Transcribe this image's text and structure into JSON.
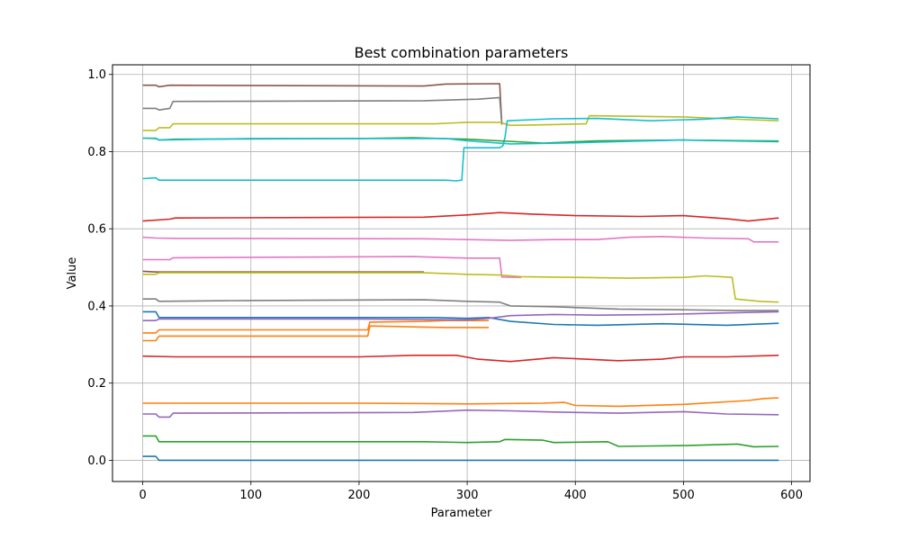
{
  "chart_data": {
    "type": "line",
    "title": "Best combination parameters",
    "xlabel": "Parameter",
    "ylabel": "Value",
    "xlim": [
      -28,
      617
    ],
    "ylim": [
      -0.055,
      1.025
    ],
    "xticks": [
      0,
      100,
      200,
      300,
      400,
      500,
      600
    ],
    "yticks": [
      0.0,
      0.2,
      0.4,
      0.6,
      0.8,
      1.0
    ],
    "xtick_labels": [
      "0",
      "100",
      "200",
      "300",
      "400",
      "500",
      "600"
    ],
    "ytick_labels": [
      "0.0",
      "0.2",
      "0.4",
      "0.6",
      "0.8",
      "1.0"
    ],
    "grid": true,
    "legend": "none",
    "series": [
      {
        "color": "#1f77b4",
        "points": [
          [
            0,
            0.01
          ],
          [
            12,
            0.01
          ],
          [
            15,
            0.0
          ],
          [
            588,
            0.0
          ]
        ]
      },
      {
        "color": "#ff7f0e",
        "points": [
          [
            0,
            0.148
          ],
          [
            200,
            0.148
          ],
          [
            300,
            0.146
          ],
          [
            370,
            0.148
          ],
          [
            390,
            0.15
          ],
          [
            400,
            0.142
          ],
          [
            440,
            0.14
          ],
          [
            500,
            0.145
          ],
          [
            560,
            0.155
          ],
          [
            575,
            0.16
          ],
          [
            588,
            0.162
          ]
        ]
      },
      {
        "color": "#2ca02c",
        "points": [
          [
            0,
            0.063
          ],
          [
            12,
            0.063
          ],
          [
            15,
            0.048
          ],
          [
            260,
            0.048
          ],
          [
            300,
            0.046
          ],
          [
            330,
            0.048
          ],
          [
            335,
            0.054
          ],
          [
            370,
            0.052
          ],
          [
            380,
            0.046
          ],
          [
            430,
            0.048
          ],
          [
            440,
            0.036
          ],
          [
            500,
            0.038
          ],
          [
            550,
            0.042
          ],
          [
            565,
            0.035
          ],
          [
            588,
            0.036
          ]
        ]
      },
      {
        "color": "#d62728",
        "points": [
          [
            0,
            0.27
          ],
          [
            30,
            0.268
          ],
          [
            200,
            0.268
          ],
          [
            250,
            0.272
          ],
          [
            290,
            0.272
          ],
          [
            310,
            0.262
          ],
          [
            340,
            0.256
          ],
          [
            380,
            0.266
          ],
          [
            440,
            0.258
          ],
          [
            480,
            0.262
          ],
          [
            500,
            0.268
          ],
          [
            540,
            0.268
          ],
          [
            588,
            0.272
          ]
        ]
      },
      {
        "color": "#9467bd",
        "points": [
          [
            0,
            0.12
          ],
          [
            12,
            0.12
          ],
          [
            15,
            0.112
          ],
          [
            25,
            0.112
          ],
          [
            28,
            0.122
          ],
          [
            250,
            0.124
          ],
          [
            300,
            0.13
          ],
          [
            340,
            0.128
          ],
          [
            380,
            0.125
          ],
          [
            440,
            0.122
          ],
          [
            500,
            0.126
          ],
          [
            540,
            0.12
          ],
          [
            588,
            0.118
          ]
        ]
      },
      {
        "color": "#8c564b",
        "points": [
          [
            0,
            0.972
          ],
          [
            12,
            0.972
          ],
          [
            15,
            0.968
          ],
          [
            25,
            0.972
          ],
          [
            260,
            0.97
          ],
          [
            280,
            0.975
          ],
          [
            330,
            0.976
          ],
          [
            332,
            0.87
          ]
        ]
      },
      {
        "color": "#e377c2",
        "points": [
          [
            0,
            0.52
          ],
          [
            25,
            0.52
          ],
          [
            28,
            0.525
          ],
          [
            250,
            0.528
          ],
          [
            300,
            0.524
          ],
          [
            330,
            0.524
          ],
          [
            332,
            0.475
          ],
          [
            350,
            0.474
          ]
        ]
      },
      {
        "color": "#7f7f7f",
        "points": [
          [
            0,
            0.912
          ],
          [
            12,
            0.912
          ],
          [
            15,
            0.908
          ],
          [
            25,
            0.912
          ],
          [
            28,
            0.93
          ],
          [
            260,
            0.932
          ],
          [
            310,
            0.936
          ],
          [
            330,
            0.94
          ],
          [
            332,
            0.87
          ]
        ]
      },
      {
        "color": "#bcbd22",
        "points": [
          [
            0,
            0.855
          ],
          [
            12,
            0.855
          ],
          [
            15,
            0.862
          ],
          [
            25,
            0.862
          ],
          [
            28,
            0.872
          ],
          [
            270,
            0.872
          ],
          [
            300,
            0.876
          ],
          [
            330,
            0.876
          ],
          [
            340,
            0.868
          ],
          [
            380,
            0.87
          ],
          [
            410,
            0.872
          ],
          [
            413,
            0.893
          ],
          [
            500,
            0.89
          ],
          [
            540,
            0.885
          ],
          [
            588,
            0.88
          ]
        ]
      },
      {
        "color": "#17becf",
        "points": [
          [
            0,
            0.73
          ],
          [
            12,
            0.732
          ],
          [
            15,
            0.726
          ],
          [
            280,
            0.726
          ],
          [
            290,
            0.724
          ],
          [
            295,
            0.726
          ],
          [
            297,
            0.81
          ],
          [
            330,
            0.81
          ],
          [
            333,
            0.815
          ],
          [
            335,
            0.838
          ],
          [
            337,
            0.88
          ],
          [
            380,
            0.885
          ],
          [
            420,
            0.886
          ],
          [
            470,
            0.88
          ],
          [
            520,
            0.884
          ],
          [
            550,
            0.89
          ],
          [
            588,
            0.885
          ]
        ]
      },
      {
        "color": "#1f77b4",
        "points": [
          [
            0,
            0.385
          ],
          [
            12,
            0.385
          ],
          [
            15,
            0.37
          ],
          [
            30,
            0.37
          ],
          [
            200,
            0.37
          ],
          [
            270,
            0.37
          ],
          [
            300,
            0.368
          ],
          [
            320,
            0.37
          ],
          [
            340,
            0.36
          ],
          [
            380,
            0.352
          ],
          [
            420,
            0.35
          ],
          [
            480,
            0.354
          ],
          [
            540,
            0.35
          ],
          [
            588,
            0.355
          ]
        ]
      },
      {
        "color": "#ff7f0e",
        "points": [
          [
            0,
            0.33
          ],
          [
            12,
            0.33
          ],
          [
            15,
            0.338
          ],
          [
            208,
            0.338
          ],
          [
            210,
            0.358
          ],
          [
            260,
            0.36
          ],
          [
            280,
            0.362
          ],
          [
            300,
            0.362
          ],
          [
            320,
            0.362
          ]
        ]
      },
      {
        "color": "#ff7f0e",
        "points": [
          [
            0,
            0.31
          ],
          [
            12,
            0.31
          ],
          [
            15,
            0.322
          ],
          [
            208,
            0.322
          ],
          [
            210,
            0.348
          ],
          [
            280,
            0.344
          ],
          [
            320,
            0.344
          ]
        ]
      },
      {
        "color": "#2ca02c",
        "points": [
          [
            0,
            0.835
          ],
          [
            12,
            0.834
          ],
          [
            15,
            0.83
          ],
          [
            30,
            0.832
          ],
          [
            200,
            0.834
          ],
          [
            250,
            0.836
          ],
          [
            300,
            0.832
          ],
          [
            330,
            0.828
          ],
          [
            370,
            0.822
          ],
          [
            420,
            0.828
          ],
          [
            500,
            0.83
          ],
          [
            588,
            0.826
          ]
        ]
      },
      {
        "color": "#17becf",
        "points": [
          [
            0,
            0.835
          ],
          [
            12,
            0.835
          ],
          [
            15,
            0.83
          ],
          [
            100,
            0.834
          ],
          [
            280,
            0.834
          ],
          [
            300,
            0.828
          ],
          [
            340,
            0.82
          ],
          [
            390,
            0.822
          ],
          [
            440,
            0.826
          ],
          [
            500,
            0.83
          ],
          [
            588,
            0.828
          ]
        ]
      },
      {
        "color": "#d62728",
        "points": [
          [
            0,
            0.62
          ],
          [
            25,
            0.625
          ],
          [
            30,
            0.628
          ],
          [
            260,
            0.63
          ],
          [
            300,
            0.636
          ],
          [
            330,
            0.642
          ],
          [
            360,
            0.638
          ],
          [
            400,
            0.634
          ],
          [
            460,
            0.632
          ],
          [
            500,
            0.634
          ],
          [
            540,
            0.626
          ],
          [
            560,
            0.62
          ],
          [
            588,
            0.628
          ]
        ]
      },
      {
        "color": "#e377c2",
        "points": [
          [
            0,
            0.578
          ],
          [
            12,
            0.576
          ],
          [
            30,
            0.575
          ],
          [
            260,
            0.574
          ],
          [
            300,
            0.572
          ],
          [
            340,
            0.57
          ],
          [
            380,
            0.572
          ],
          [
            420,
            0.572
          ],
          [
            450,
            0.578
          ],
          [
            480,
            0.58
          ],
          [
            520,
            0.576
          ],
          [
            560,
            0.574
          ],
          [
            565,
            0.566
          ],
          [
            588,
            0.566
          ]
        ]
      },
      {
        "color": "#8c564b",
        "points": [
          [
            0,
            0.49
          ],
          [
            12,
            0.488
          ],
          [
            30,
            0.488
          ],
          [
            260,
            0.488
          ]
        ]
      },
      {
        "color": "#bcbd22",
        "points": [
          [
            0,
            0.482
          ],
          [
            12,
            0.482
          ],
          [
            15,
            0.486
          ],
          [
            260,
            0.486
          ],
          [
            300,
            0.482
          ],
          [
            330,
            0.48
          ],
          [
            350,
            0.476
          ],
          [
            400,
            0.474
          ],
          [
            450,
            0.472
          ],
          [
            500,
            0.474
          ],
          [
            520,
            0.478
          ],
          [
            545,
            0.474
          ],
          [
            548,
            0.418
          ],
          [
            570,
            0.412
          ],
          [
            588,
            0.41
          ]
        ]
      },
      {
        "color": "#7f7f7f",
        "points": [
          [
            0,
            0.418
          ],
          [
            12,
            0.418
          ],
          [
            15,
            0.412
          ],
          [
            100,
            0.414
          ],
          [
            260,
            0.416
          ],
          [
            300,
            0.412
          ],
          [
            330,
            0.41
          ],
          [
            340,
            0.4
          ],
          [
            380,
            0.398
          ],
          [
            440,
            0.392
          ],
          [
            500,
            0.39
          ],
          [
            550,
            0.388
          ],
          [
            588,
            0.388
          ]
        ]
      },
      {
        "color": "#9467bd",
        "points": [
          [
            0,
            0.362
          ],
          [
            12,
            0.362
          ],
          [
            15,
            0.366
          ],
          [
            200,
            0.366
          ],
          [
            300,
            0.364
          ],
          [
            320,
            0.368
          ],
          [
            340,
            0.375
          ],
          [
            380,
            0.378
          ],
          [
            420,
            0.376
          ],
          [
            480,
            0.378
          ],
          [
            540,
            0.382
          ],
          [
            588,
            0.385
          ]
        ]
      }
    ]
  }
}
